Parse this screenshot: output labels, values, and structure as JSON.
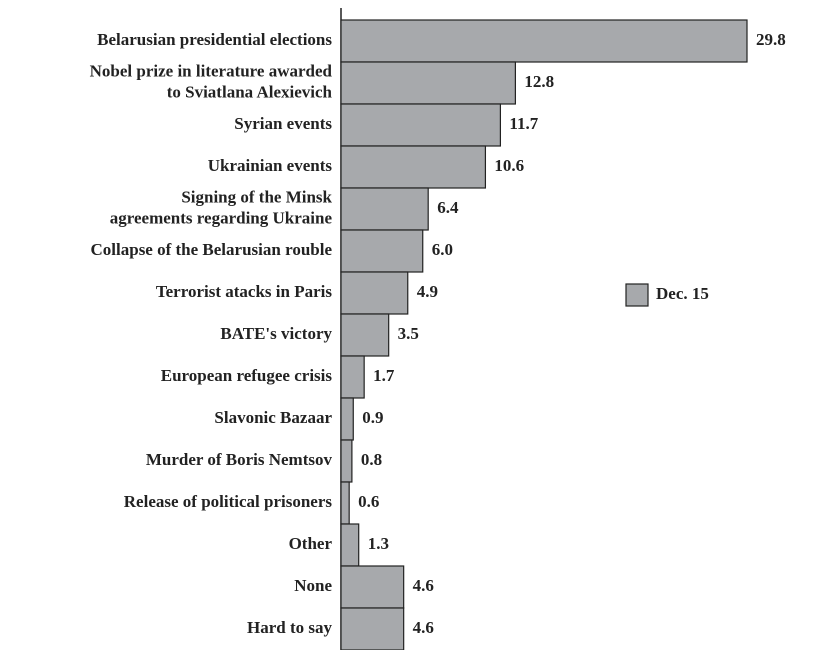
{
  "chart_data": {
    "type": "barh",
    "categories": [
      "Belarusian presidential elections",
      "Nobel prize in literature awarded\nto Sviatlana Alexievich",
      "Syrian events",
      "Ukrainian events",
      "Signing of the Minsk\nagreements regarding Ukraine",
      "Collapse of the Belarusian rouble",
      "Terrorist atacks in Paris",
      "BATE's victory",
      "European refugee crisis",
      "Slavonic Bazaar",
      "Murder of Boris Nemtsov",
      "Release of political prisoners",
      "Other",
      "None",
      "Hard to say"
    ],
    "series": [
      {
        "name": "Dec. 15",
        "color": "#a7a9ac",
        "values": [
          29.8,
          12.8,
          11.7,
          10.6,
          6.4,
          6.0,
          4.9,
          3.5,
          1.7,
          0.9,
          0.8,
          0.6,
          1.3,
          4.6,
          4.6
        ],
        "value_labels": [
          "29.8",
          "12.8",
          "11.7",
          "10.6",
          "6.4",
          "6.0",
          "4.9",
          "3.5",
          "1.7",
          "0.9",
          "0.8",
          "0.6",
          "1.3",
          "4.6",
          "4.6"
        ]
      }
    ],
    "legend": "right"
  }
}
